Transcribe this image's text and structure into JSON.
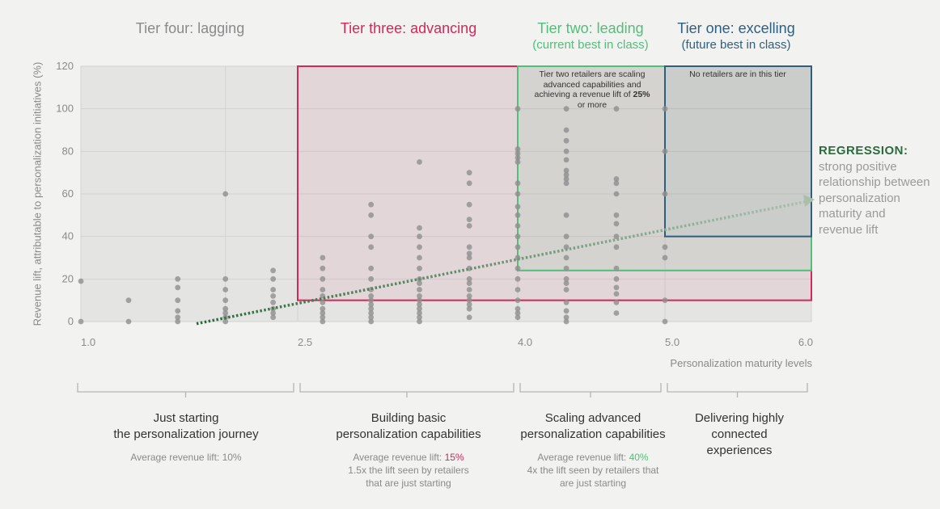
{
  "tiers": {
    "four": {
      "title": "Tier four: lagging",
      "color": "#8a8a8a"
    },
    "three": {
      "title": "Tier three: advancing",
      "color": "#d4275a"
    },
    "two": {
      "title": "Tier two: leading",
      "subtitle": "(current best in class)",
      "color": "#4fbf7a"
    },
    "one": {
      "title": "Tier one: excelling",
      "subtitle": "(future best in class)",
      "color": "#2f5f7f"
    }
  },
  "notes": {
    "tier_two_line1": "Tier two retailers are scaling",
    "tier_two_line2": "advanced capabilities and",
    "tier_two_line3_pre": "achieving a revenue lift of",
    "tier_two_bold": "25%",
    "tier_two_line4": "or more",
    "tier_one": "No retailers are in this tier"
  },
  "regression": {
    "title": "REGRESSION:",
    "text": "strong positive relationship between personalization maturity and revenue lift"
  },
  "chart_data": {
    "type": "scatter",
    "ylabel": "Revenue lift, attributable to personalization initiatives (%)",
    "xlabel": "Personalization maturity levels",
    "xlim": [
      1.0,
      6.0
    ],
    "ylim": [
      0,
      120
    ],
    "yticks": [
      "0",
      "20",
      "40",
      "60",
      "80",
      "100",
      "120"
    ],
    "xticks": [
      {
        "value": 1.0,
        "label": "1.0"
      },
      {
        "value": 2.5,
        "label": "2.5"
      },
      {
        "value": 4.0,
        "label": "4.0"
      },
      {
        "value": 5.0,
        "label": "5.0"
      },
      {
        "value": 6.0,
        "label": "6.0"
      }
    ],
    "grid": true,
    "regression_line": {
      "x": [
        1.8,
        6.0
      ],
      "y": [
        -1,
        57
      ]
    },
    "tier_regions": [
      {
        "tier": "three",
        "x": [
          2.5,
          6.0
        ],
        "y": [
          10,
          120
        ]
      },
      {
        "tier": "two",
        "x": [
          4.0,
          6.0
        ],
        "y": [
          24,
          120
        ]
      },
      {
        "tier": "one",
        "x": [
          5.0,
          6.0
        ],
        "y": [
          40,
          120
        ]
      }
    ],
    "points": [
      [
        1.0,
        0
      ],
      [
        1.0,
        19
      ],
      [
        1.33,
        0
      ],
      [
        1.33,
        10
      ],
      [
        1.67,
        0
      ],
      [
        1.67,
        2
      ],
      [
        1.67,
        5
      ],
      [
        1.67,
        10
      ],
      [
        1.67,
        16
      ],
      [
        1.67,
        20
      ],
      [
        2.0,
        0
      ],
      [
        2.0,
        2
      ],
      [
        2.0,
        4
      ],
      [
        2.0,
        6
      ],
      [
        2.0,
        10
      ],
      [
        2.0,
        15
      ],
      [
        2.0,
        20
      ],
      [
        2.0,
        60
      ],
      [
        2.33,
        2
      ],
      [
        2.33,
        4
      ],
      [
        2.33,
        6
      ],
      [
        2.33,
        9
      ],
      [
        2.33,
        12
      ],
      [
        2.33,
        15
      ],
      [
        2.33,
        20
      ],
      [
        2.33,
        24
      ],
      [
        2.67,
        0
      ],
      [
        2.67,
        2
      ],
      [
        2.67,
        4
      ],
      [
        2.67,
        6
      ],
      [
        2.67,
        9
      ],
      [
        2.67,
        12
      ],
      [
        2.67,
        15
      ],
      [
        2.67,
        20
      ],
      [
        2.67,
        25
      ],
      [
        2.67,
        30
      ],
      [
        3.0,
        0
      ],
      [
        3.0,
        2
      ],
      [
        3.0,
        4
      ],
      [
        3.0,
        6
      ],
      [
        3.0,
        8
      ],
      [
        3.0,
        10
      ],
      [
        3.0,
        12
      ],
      [
        3.0,
        15
      ],
      [
        3.0,
        20
      ],
      [
        3.0,
        25
      ],
      [
        3.0,
        35
      ],
      [
        3.0,
        40
      ],
      [
        3.0,
        50
      ],
      [
        3.0,
        55
      ],
      [
        3.33,
        0
      ],
      [
        3.33,
        2
      ],
      [
        3.33,
        4
      ],
      [
        3.33,
        6
      ],
      [
        3.33,
        8
      ],
      [
        3.33,
        10
      ],
      [
        3.33,
        12
      ],
      [
        3.33,
        15
      ],
      [
        3.33,
        18
      ],
      [
        3.33,
        20
      ],
      [
        3.33,
        25
      ],
      [
        3.33,
        30
      ],
      [
        3.33,
        35
      ],
      [
        3.33,
        40
      ],
      [
        3.33,
        44
      ],
      [
        3.33,
        75
      ],
      [
        3.67,
        2
      ],
      [
        3.67,
        6
      ],
      [
        3.67,
        8
      ],
      [
        3.67,
        10
      ],
      [
        3.67,
        12
      ],
      [
        3.67,
        15
      ],
      [
        3.67,
        18
      ],
      [
        3.67,
        20
      ],
      [
        3.67,
        25
      ],
      [
        3.67,
        30
      ],
      [
        3.67,
        32
      ],
      [
        3.67,
        35
      ],
      [
        3.67,
        45
      ],
      [
        3.67,
        48
      ],
      [
        3.67,
        55
      ],
      [
        3.67,
        65
      ],
      [
        3.67,
        70
      ],
      [
        4.0,
        2
      ],
      [
        4.0,
        4
      ],
      [
        4.0,
        6
      ],
      [
        4.0,
        10
      ],
      [
        4.0,
        15
      ],
      [
        4.0,
        20
      ],
      [
        4.0,
        25
      ],
      [
        4.0,
        30
      ],
      [
        4.0,
        35
      ],
      [
        4.0,
        40
      ],
      [
        4.0,
        45
      ],
      [
        4.0,
        50
      ],
      [
        4.0,
        54
      ],
      [
        4.0,
        60
      ],
      [
        4.0,
        65
      ],
      [
        4.0,
        75
      ],
      [
        4.0,
        77
      ],
      [
        4.0,
        79
      ],
      [
        4.0,
        81
      ],
      [
        4.0,
        100
      ],
      [
        4.33,
        0
      ],
      [
        4.33,
        2
      ],
      [
        4.33,
        5
      ],
      [
        4.33,
        9
      ],
      [
        4.33,
        15
      ],
      [
        4.33,
        18
      ],
      [
        4.33,
        20
      ],
      [
        4.33,
        25
      ],
      [
        4.33,
        30
      ],
      [
        4.33,
        35
      ],
      [
        4.33,
        40
      ],
      [
        4.33,
        50
      ],
      [
        4.33,
        65
      ],
      [
        4.33,
        67
      ],
      [
        4.33,
        69
      ],
      [
        4.33,
        71
      ],
      [
        4.33,
        76
      ],
      [
        4.33,
        80
      ],
      [
        4.33,
        85
      ],
      [
        4.33,
        90
      ],
      [
        4.33,
        100
      ],
      [
        4.67,
        4
      ],
      [
        4.67,
        9
      ],
      [
        4.67,
        13
      ],
      [
        4.67,
        16
      ],
      [
        4.67,
        20
      ],
      [
        4.67,
        25
      ],
      [
        4.67,
        35
      ],
      [
        4.67,
        40
      ],
      [
        4.67,
        46
      ],
      [
        4.67,
        50
      ],
      [
        4.67,
        60
      ],
      [
        4.67,
        65
      ],
      [
        4.67,
        67
      ],
      [
        4.67,
        100
      ],
      [
        5.0,
        0
      ],
      [
        5.0,
        10
      ],
      [
        5.0,
        30
      ],
      [
        5.0,
        35
      ],
      [
        5.0,
        60
      ],
      [
        5.0,
        80
      ],
      [
        5.0,
        100
      ]
    ]
  },
  "phases": [
    {
      "title1": "Just starting",
      "title2": "the personalization journey",
      "lift_text": "Average revenue lift: 10%"
    },
    {
      "title1": "Building basic",
      "title2": "personalization capabilities",
      "lift_pre": "Average revenue lift: ",
      "lift_value": "15%",
      "lift_color": "#d4275a",
      "extra1": "1.5x the lift seen by retailers",
      "extra2": "that are just starting"
    },
    {
      "title1": "Scaling advanced",
      "title2": "personalization capabilities",
      "lift_pre": "Average revenue lift: ",
      "lift_value": "40%",
      "lift_color": "#4fbf7a",
      "extra1": "4x the lift seen by retailers that",
      "extra2": "are just starting"
    },
    {
      "title1": "Delivering highly",
      "title2": "connected",
      "title3": "experiences"
    }
  ]
}
